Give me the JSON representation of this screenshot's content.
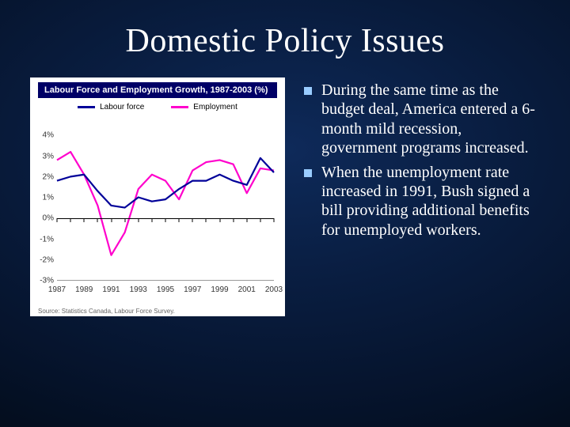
{
  "title": "Domestic Policy Issues",
  "bullets": [
    "During the same time as the budget deal, America entered a 6-month mild recession, government programs increased.",
    "When the unemployment rate increased in 1991, Bush signed a bill providing additional benefits for unemployed workers."
  ],
  "chart": {
    "type": "line",
    "title": "Labour Force and Employment Growth, 1987-2003 (%)",
    "title_bg": "#000066",
    "title_color": "#ffffff",
    "background_color": "#ffffff",
    "legend": [
      {
        "label": "Labour force",
        "color": "#000099"
      },
      {
        "label": "Employment",
        "color": "#ff00cc"
      }
    ],
    "x_values": [
      1987,
      1988,
      1989,
      1990,
      1991,
      1992,
      1993,
      1994,
      1995,
      1996,
      1997,
      1998,
      1999,
      2000,
      2001,
      2002,
      2003
    ],
    "x_ticks_labeled": [
      1987,
      1989,
      1991,
      1993,
      1995,
      1997,
      1999,
      2001,
      2003
    ],
    "series": {
      "labour_force": [
        1.8,
        2.0,
        2.1,
        1.3,
        0.6,
        0.5,
        1.0,
        0.8,
        0.9,
        1.4,
        1.8,
        1.8,
        2.1,
        1.8,
        1.6,
        2.9,
        2.2
      ],
      "employment": [
        2.8,
        3.2,
        2.1,
        0.6,
        -1.8,
        -0.7,
        1.4,
        2.1,
        1.8,
        0.9,
        2.3,
        2.7,
        2.8,
        2.6,
        1.2,
        2.4,
        2.3
      ]
    },
    "ylim": [
      -3,
      5
    ],
    "ytick_labels": [
      "4%",
      "3%",
      "2%",
      "1%",
      "0%",
      "-1%",
      "-2%",
      "-3%"
    ],
    "ytick_values": [
      4,
      3,
      2,
      1,
      0,
      -1,
      -2,
      -3
    ],
    "line_width": 2.2,
    "grid_color": "#e0e0e0",
    "axis_color": "#000000",
    "tick_color": "#000000",
    "label_fontsize": 10,
    "source": "Source: Statistics Canada, Labour Force Survey."
  },
  "colors": {
    "slide_bg_inner": "#0e2a5a",
    "slide_bg_outer": "#020912",
    "text": "#ffffff",
    "bullet_marker": "#99ccff"
  }
}
